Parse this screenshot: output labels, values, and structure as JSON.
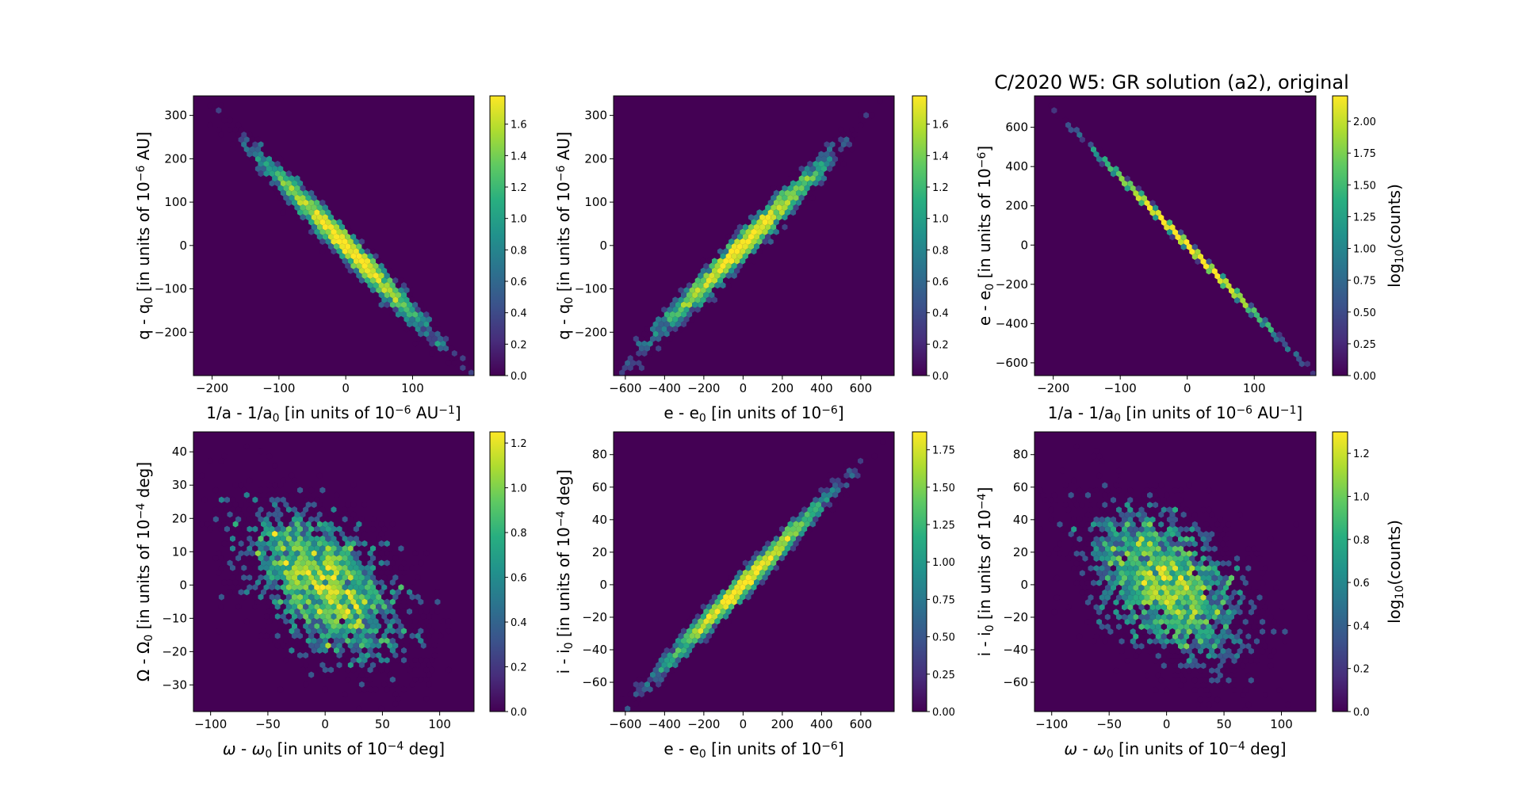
{
  "chart_data": {
    "type": "heatmap",
    "subtype": "hexbin",
    "title": "C/2020 W5: GR solution (a2), original",
    "colormap": "viridis",
    "colors": {
      "low": "#440154",
      "high": "#fde725"
    },
    "panels": [
      {
        "xlabel": [
          {
            "t": "1/a - 1/a"
          },
          {
            "t": "0",
            "s": "sub"
          },
          {
            "t": " [in units of 10"
          },
          {
            "t": "−6",
            "s": "sup"
          },
          {
            "t": " AU"
          },
          {
            "t": "−1",
            "s": "sup"
          },
          {
            "t": "]"
          }
        ],
        "ylabel": [
          {
            "t": "q - q"
          },
          {
            "t": "0",
            "s": "sub"
          },
          {
            "t": " [in units of 10"
          },
          {
            "t": "−6",
            "s": "sup"
          },
          {
            "t": " AU]"
          }
        ],
        "xlim": [
          -228,
          192
        ],
        "ylim": [
          -300,
          345
        ],
        "xticks": [
          -200,
          -100,
          0,
          100
        ],
        "yticks": [
          -200,
          -100,
          0,
          100,
          200,
          300
        ],
        "cbar": {
          "max": 1.78,
          "ticks": [
            "0.0",
            "0.2",
            "0.4",
            "0.6",
            "0.8",
            "1.0",
            "1.2",
            "1.4",
            "1.6"
          ],
          "label": []
        },
        "distribution": {
          "n": 3000,
          "sx": 62,
          "sy": 100,
          "rho": -0.985
        }
      },
      {
        "xlabel": [
          {
            "t": "e - e"
          },
          {
            "t": "0",
            "s": "sub"
          },
          {
            "t": " [in units of 10"
          },
          {
            "t": "−6",
            "s": "sup"
          },
          {
            "t": "]"
          }
        ],
        "ylabel": [
          {
            "t": "q - q"
          },
          {
            "t": "0",
            "s": "sub"
          },
          {
            "t": " [in units of 10"
          },
          {
            "t": "−6",
            "s": "sup"
          },
          {
            "t": " AU]"
          }
        ],
        "xlim": [
          -660,
          770
        ],
        "ylim": [
          -300,
          345
        ],
        "xticks": [
          -600,
          -400,
          -200,
          0,
          200,
          400,
          600
        ],
        "yticks": [
          -200,
          -100,
          0,
          100,
          200,
          300
        ],
        "cbar": {
          "max": 1.78,
          "ticks": [
            "0.0",
            "0.2",
            "0.4",
            "0.6",
            "0.8",
            "1.0",
            "1.2",
            "1.4",
            "1.6"
          ],
          "label": []
        },
        "distribution": {
          "n": 3000,
          "sx": 215,
          "sy": 100,
          "rho": 0.985
        }
      },
      {
        "xlabel": [
          {
            "t": "1/a - 1/a"
          },
          {
            "t": "0",
            "s": "sub"
          },
          {
            "t": " [in units of 10"
          },
          {
            "t": "−6",
            "s": "sup"
          },
          {
            "t": " AU"
          },
          {
            "t": "−1",
            "s": "sup"
          },
          {
            "t": "]"
          }
        ],
        "ylabel": [
          {
            "t": "e - e"
          },
          {
            "t": "0",
            "s": "sub"
          },
          {
            "t": " [in units of 10"
          },
          {
            "t": "−6",
            "s": "sup"
          },
          {
            "t": "]"
          }
        ],
        "xlim": [
          -228,
          192
        ],
        "ylim": [
          -665,
          760
        ],
        "xticks": [
          -200,
          -100,
          0,
          100
        ],
        "yticks": [
          -600,
          -400,
          -200,
          0,
          200,
          400,
          600
        ],
        "cbar": {
          "max": 2.2,
          "ticks": [
            "0.00",
            "0.25",
            "0.50",
            "0.75",
            "1.00",
            "1.25",
            "1.50",
            "1.75",
            "2.00"
          ],
          "label": [
            {
              "t": "log"
            },
            {
              "t": "10",
              "s": "sub"
            },
            {
              "t": "(counts)"
            }
          ]
        },
        "distribution": {
          "n": 3000,
          "sx": 62,
          "sy": 215,
          "rho": -0.9996
        }
      },
      {
        "xlabel": [
          {
            "t": "ω",
            "i": true
          },
          {
            "t": " - "
          },
          {
            "t": "ω",
            "i": true
          },
          {
            "t": "0",
            "s": "sub"
          },
          {
            "t": " [in units of 10"
          },
          {
            "t": "−4",
            "s": "sup"
          },
          {
            "t": " deg]"
          }
        ],
        "ylabel": [
          {
            "t": "Ω - Ω"
          },
          {
            "t": "0",
            "s": "sub"
          },
          {
            "t": " [in units of 10"
          },
          {
            "t": "−4",
            "s": "sup"
          },
          {
            "t": " deg]"
          }
        ],
        "xlim": [
          -115,
          130
        ],
        "ylim": [
          -38,
          46
        ],
        "xticks": [
          -100,
          -50,
          0,
          50,
          100
        ],
        "yticks": [
          -30,
          -20,
          -10,
          0,
          10,
          20,
          30,
          40
        ],
        "cbar": {
          "max": 1.25,
          "ticks": [
            "0.0",
            "0.2",
            "0.4",
            "0.6",
            "0.8",
            "1.0",
            "1.2"
          ],
          "label": []
        },
        "distribution": {
          "n": 3000,
          "sx": 36,
          "sy": 12,
          "rho": -0.5
        }
      },
      {
        "xlabel": [
          {
            "t": "e - e"
          },
          {
            "t": "0",
            "s": "sub"
          },
          {
            "t": " [in units of 10"
          },
          {
            "t": "−6",
            "s": "sup"
          },
          {
            "t": "]"
          }
        ],
        "ylabel": [
          {
            "t": "i - i"
          },
          {
            "t": "0",
            "s": "sub"
          },
          {
            "t": " [in units of 10"
          },
          {
            "t": "−4",
            "s": "sup"
          },
          {
            "t": " deg]"
          }
        ],
        "xlim": [
          -660,
          770
        ],
        "ylim": [
          -78,
          94
        ],
        "xticks": [
          -600,
          -400,
          -200,
          0,
          200,
          400,
          600
        ],
        "yticks": [
          -60,
          -40,
          -20,
          0,
          20,
          40,
          60,
          80
        ],
        "cbar": {
          "max": 1.87,
          "ticks": [
            "0.00",
            "0.25",
            "0.50",
            "0.75",
            "1.00",
            "1.25",
            "1.50",
            "1.75"
          ],
          "label": []
        },
        "distribution": {
          "n": 3000,
          "sx": 215,
          "sy": 27,
          "rho": 0.99
        }
      },
      {
        "xlabel": [
          {
            "t": "ω",
            "i": true
          },
          {
            "t": " - "
          },
          {
            "t": "ω",
            "i": true
          },
          {
            "t": "0",
            "s": "sub"
          },
          {
            "t": " [in units of 10"
          },
          {
            "t": "−4",
            "s": "sup"
          },
          {
            "t": " deg]"
          }
        ],
        "ylabel": [
          {
            "t": "i - i"
          },
          {
            "t": "0",
            "s": "sub"
          },
          {
            "t": " [in units of 10"
          },
          {
            "t": "−4",
            "s": "sup"
          },
          {
            "t": "]"
          }
        ],
        "xlim": [
          -115,
          130
        ],
        "ylim": [
          -78,
          94
        ],
        "xticks": [
          -100,
          -50,
          0,
          50,
          100
        ],
        "yticks": [
          -60,
          -40,
          -20,
          0,
          20,
          40,
          60,
          80
        ],
        "cbar": {
          "max": 1.3,
          "ticks": [
            "0.0",
            "0.2",
            "0.4",
            "0.6",
            "0.8",
            "1.0",
            "1.2"
          ],
          "label": [
            {
              "t": "log"
            },
            {
              "t": "10",
              "s": "sub"
            },
            {
              "t": "(counts)"
            }
          ]
        },
        "distribution": {
          "n": 3000,
          "sx": 36,
          "sy": 25,
          "rho": -0.45
        }
      }
    ]
  }
}
